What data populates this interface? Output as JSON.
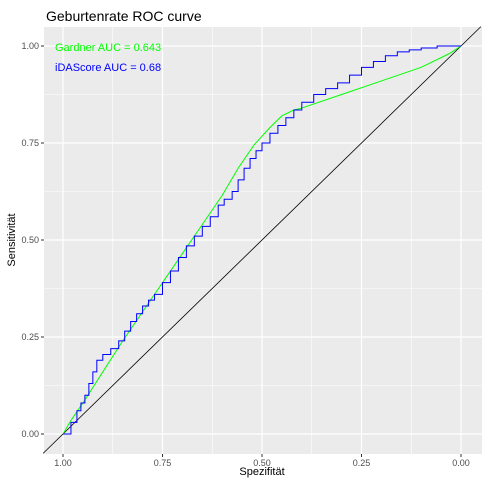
{
  "chart_data": {
    "type": "line",
    "title": "Geburtenrate ROC curve",
    "xlabel": "Spezifität",
    "ylabel": "Sensitivität",
    "xlim": [
      1.0,
      0.0
    ],
    "ylim": [
      0.0,
      1.0
    ],
    "x_reversed": true,
    "grid": true,
    "x_ticks": [
      {
        "value": 1.0,
        "label": "1.00"
      },
      {
        "value": 0.75,
        "label": "0.75"
      },
      {
        "value": 0.5,
        "label": "0.50"
      },
      {
        "value": 0.25,
        "label": "0.25"
      },
      {
        "value": 0.0,
        "label": "0.00"
      }
    ],
    "y_ticks": [
      {
        "value": 0.0,
        "label": "0.00"
      },
      {
        "value": 0.25,
        "label": "0.25"
      },
      {
        "value": 0.5,
        "label": "0.50"
      },
      {
        "value": 0.75,
        "label": "0.75"
      },
      {
        "value": 1.0,
        "label": "1.00"
      }
    ],
    "reference_line": {
      "color": "#000000",
      "points": [
        [
          1.05,
          -0.05
        ],
        [
          -0.05,
          1.05
        ]
      ]
    },
    "annotations": [
      {
        "text": "Gardner AUC = 0.643",
        "color": "#00ff00"
      },
      {
        "text": "iDAScore AUC = 0.68",
        "color": "#0000ff"
      }
    ],
    "series": [
      {
        "color": "#00ff00",
        "points": [
          [
            1.0,
            0.0
          ],
          [
            0.98,
            0.035
          ],
          [
            0.95,
            0.08
          ],
          [
            0.9,
            0.16
          ],
          [
            0.85,
            0.24
          ],
          [
            0.8,
            0.315
          ],
          [
            0.75,
            0.39
          ],
          [
            0.7,
            0.465
          ],
          [
            0.65,
            0.54
          ],
          [
            0.6,
            0.615
          ],
          [
            0.56,
            0.685
          ],
          [
            0.52,
            0.745
          ],
          [
            0.48,
            0.79
          ],
          [
            0.45,
            0.82
          ],
          [
            0.42,
            0.835
          ],
          [
            0.4,
            0.84
          ],
          [
            0.3,
            0.875
          ],
          [
            0.2,
            0.91
          ],
          [
            0.1,
            0.945
          ],
          [
            0.03,
            0.98
          ],
          [
            0.0,
            1.0
          ]
        ]
      },
      {
        "color": "#0000ff",
        "points": [
          [
            1.0,
            0.0
          ],
          [
            0.98,
            0.03
          ],
          [
            0.965,
            0.06
          ],
          [
            0.955,
            0.08
          ],
          [
            0.945,
            0.1
          ],
          [
            0.935,
            0.13
          ],
          [
            0.925,
            0.16
          ],
          [
            0.915,
            0.19
          ],
          [
            0.9,
            0.205
          ],
          [
            0.88,
            0.22
          ],
          [
            0.86,
            0.24
          ],
          [
            0.845,
            0.265
          ],
          [
            0.83,
            0.29
          ],
          [
            0.815,
            0.31
          ],
          [
            0.8,
            0.33
          ],
          [
            0.785,
            0.345
          ],
          [
            0.77,
            0.36
          ],
          [
            0.75,
            0.39
          ],
          [
            0.73,
            0.42
          ],
          [
            0.71,
            0.455
          ],
          [
            0.69,
            0.485
          ],
          [
            0.67,
            0.51
          ],
          [
            0.65,
            0.535
          ],
          [
            0.63,
            0.56
          ],
          [
            0.61,
            0.59
          ],
          [
            0.595,
            0.605
          ],
          [
            0.575,
            0.625
          ],
          [
            0.56,
            0.655
          ],
          [
            0.545,
            0.685
          ],
          [
            0.53,
            0.71
          ],
          [
            0.515,
            0.73
          ],
          [
            0.5,
            0.75
          ],
          [
            0.48,
            0.775
          ],
          [
            0.46,
            0.795
          ],
          [
            0.44,
            0.815
          ],
          [
            0.42,
            0.835
          ],
          [
            0.4,
            0.855
          ],
          [
            0.37,
            0.875
          ],
          [
            0.34,
            0.89
          ],
          [
            0.31,
            0.905
          ],
          [
            0.28,
            0.925
          ],
          [
            0.25,
            0.945
          ],
          [
            0.22,
            0.96
          ],
          [
            0.19,
            0.975
          ],
          [
            0.16,
            0.985
          ],
          [
            0.13,
            0.99
          ],
          [
            0.1,
            0.995
          ],
          [
            0.06,
            1.0
          ],
          [
            0.0,
            1.0
          ]
        ]
      }
    ]
  }
}
